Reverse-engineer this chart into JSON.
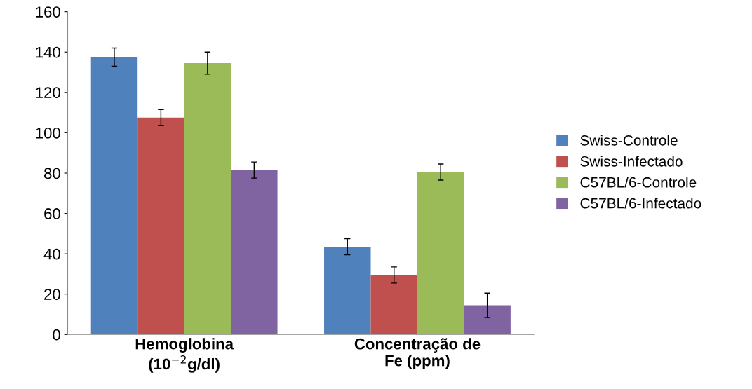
{
  "chart_data": {
    "type": "bar",
    "categories": [
      "Hemoglobina\n(10$^{−2}$g/dl)",
      "Concentração de\nFe (ppm)"
    ],
    "series": [
      {
        "name": "Swiss-Controle",
        "color": "#4f81bd",
        "values": [
          137.5,
          43.5
        ],
        "errors": [
          4.5,
          4
        ]
      },
      {
        "name": "Swiss-Infectado",
        "color": "#c0504d",
        "values": [
          107.5,
          29.5
        ],
        "errors": [
          4,
          4
        ]
      },
      {
        "name": "C57BL/6-Controle",
        "color": "#9bbb59",
        "values": [
          134.5,
          80.5
        ],
        "errors": [
          5.5,
          4
        ]
      },
      {
        "name": "C57BL/6-Infectado",
        "color": "#8064a2",
        "values": [
          81.5,
          14.5
        ],
        "errors": [
          4,
          6
        ]
      }
    ],
    "ylim": [
      0,
      160
    ],
    "yticks": [
      0,
      20,
      40,
      60,
      80,
      100,
      120,
      140,
      160
    ],
    "grid": false,
    "legend": "right"
  }
}
